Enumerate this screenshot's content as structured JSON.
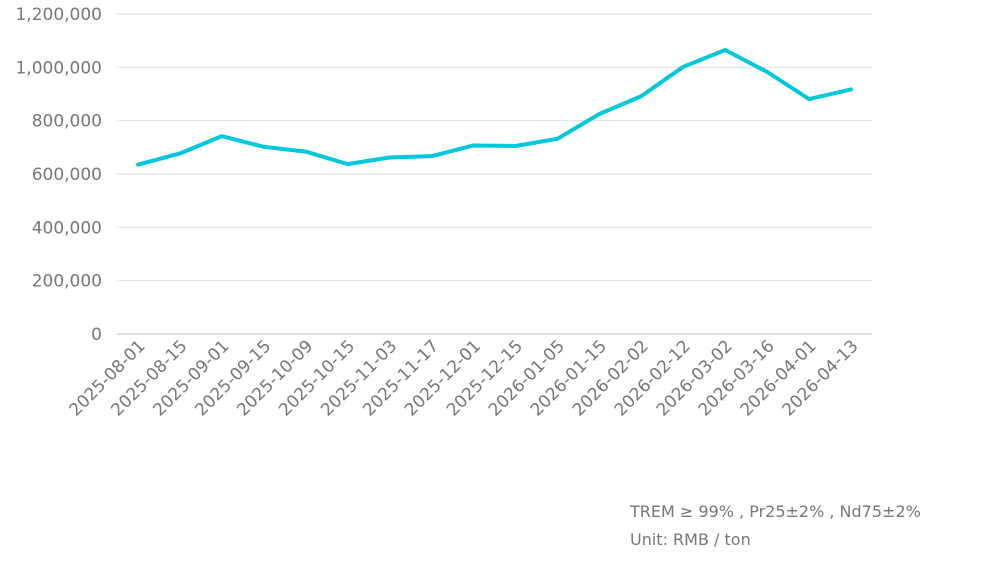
{
  "chart_data": {
    "type": "line",
    "title": "",
    "xlabel": "",
    "ylabel": "",
    "ylim": [
      0,
      1200000
    ],
    "yticks": [
      0,
      200000,
      400000,
      600000,
      800000,
      1000000,
      1200000
    ],
    "ytick_labels": [
      "0",
      "200,000",
      "400,000",
      "600,000",
      "800,000",
      "1,000,000",
      "1,200,000"
    ],
    "grid": true,
    "categories": [
      "2025-08-01",
      "2025-08-15",
      "2025-09-01",
      "2025-09-15",
      "2025-10-09",
      "2025-10-15",
      "2025-11-03",
      "2025-11-17",
      "2025-12-01",
      "2025-12-15",
      "2026-01-05",
      "2026-01-15",
      "2026-02-02",
      "2026-02-12",
      "2026-03-02",
      "2026-03-16",
      "2026-04-01",
      "2026-04-13"
    ],
    "series": [
      {
        "values": [
          635000,
          677000,
          742000,
          702000,
          684000,
          637000,
          662000,
          667000,
          707000,
          705000,
          732000,
          825000,
          892000,
          1002000,
          1065000,
          983000,
          881000,
          917000
        ],
        "color": "#00c8dc"
      }
    ],
    "notes": [
      "TREM ≥ 99% , Pr25±2% , Nd75±2%",
      "Unit: RMB / ton"
    ]
  }
}
